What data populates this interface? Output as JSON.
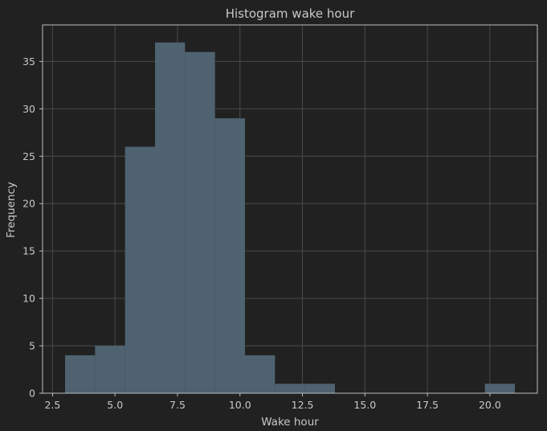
{
  "chart_data": {
    "type": "bar",
    "subtype": "histogram",
    "title": "Histogram wake hour",
    "xlabel": "Wake hour",
    "ylabel": "Frequency",
    "bin_edges": [
      3.0,
      4.2,
      5.4,
      6.6,
      7.8,
      9.0,
      10.2,
      11.4,
      12.6,
      13.8,
      15.0,
      16.2,
      17.4,
      18.6,
      19.8,
      21.0
    ],
    "values": [
      4,
      5,
      26,
      37,
      36,
      29,
      4,
      1,
      1,
      0,
      0,
      0,
      0,
      0,
      1
    ],
    "xlim": [
      2.1,
      21.9
    ],
    "ylim": [
      0,
      38.85
    ],
    "xticks": [
      2.5,
      5.0,
      7.5,
      10.0,
      12.5,
      15.0,
      17.5,
      20.0
    ],
    "xtick_labels": [
      "2.5",
      "5.0",
      "7.5",
      "10.0",
      "12.5",
      "15.0",
      "17.5",
      "20.0"
    ],
    "yticks": [
      0,
      5,
      10,
      15,
      20,
      25,
      30,
      35
    ],
    "ytick_labels": [
      "0",
      "5",
      "10",
      "15",
      "20",
      "25",
      "30",
      "35"
    ],
    "grid": true,
    "colors": {
      "background": "#212121",
      "bar": "#4f6270",
      "grid": "#4a4a4a",
      "text": "#c8c8c8"
    }
  }
}
